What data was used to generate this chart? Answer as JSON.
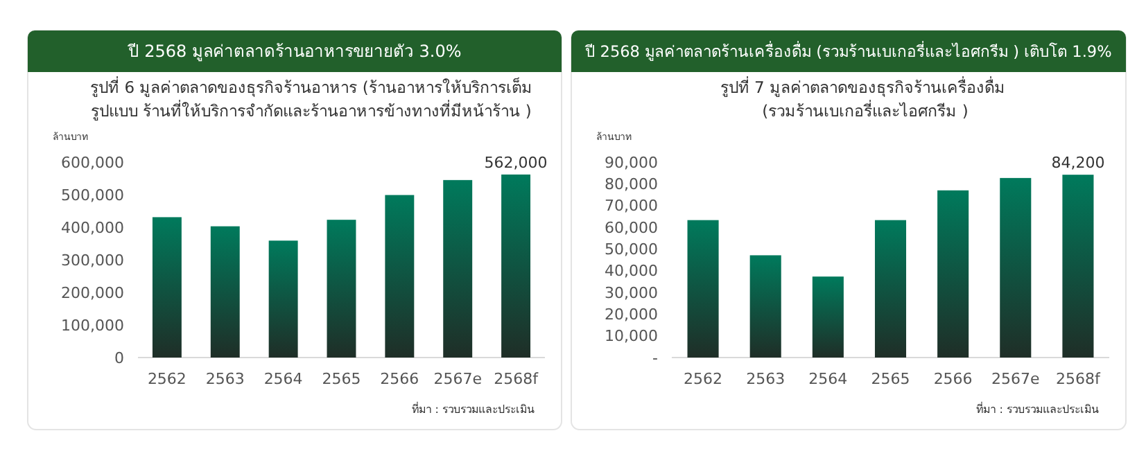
{
  "chart_data": [
    {
      "type": "bar",
      "title": "ปี 2568 มูลค่าตลาดร้านอาหารขยายตัว 3.0%",
      "subtitle": "รูปที่ 6  มูลค่าตลาดของธุรกิจร้านอาหาร (ร้านอาหารให้บริการเต็ม รูปแบบ ร้านที่ให้บริการจำกัดและร้านอาหารข้างทางที่มีหน้าร้าน )",
      "ylabel": "ล้านบาท",
      "annotations": [
        "ที่มา : รวบรวมและประเมิน"
      ],
      "categories": [
        "2562",
        "2563",
        "2564",
        "2565",
        "2566",
        "2567e",
        "2568f"
      ],
      "values": [
        431000,
        403000,
        359000,
        423000,
        499000,
        545000,
        562000
      ],
      "value_labels": [
        null,
        null,
        null,
        null,
        null,
        null,
        "562,000"
      ],
      "color": "#007a5c",
      "ylim": [
        0,
        600000
      ],
      "yticks": [
        {
          "value": 0,
          "label": "0"
        },
        {
          "value": 100000,
          "label": "100,000"
        },
        {
          "value": 200000,
          "label": "200,000"
        },
        {
          "value": 300000,
          "label": "300,000"
        },
        {
          "value": 400000,
          "label": "400,000"
        },
        {
          "value": 500000,
          "label": "500,000"
        },
        {
          "value": 600000,
          "label": "600,000"
        }
      ],
      "grid": false
    },
    {
      "type": "bar",
      "title": "ปี 2568 มูลค่าตลาดร้านเครื่องดื่ม (รวมร้านเบเกอรี่และไอศกรีม ) เติบโต 1.9%",
      "subtitle": "รูปที่ 7 มูลค่าตลาดของธุรกิจร้านเครื่องดื่ม  (รวมร้านเบเกอรี่และไอศกรีม )",
      "ylabel": "ล้านบาท",
      "annotations": [
        "ที่มา : รวบรวมและประเมิน"
      ],
      "categories": [
        "2562",
        "2563",
        "2564",
        "2565",
        "2566",
        "2567e",
        "2568f"
      ],
      "values": [
        63300,
        47100,
        37300,
        63300,
        77000,
        82700,
        84200
      ],
      "value_labels": [
        null,
        null,
        null,
        null,
        null,
        null,
        "84,200"
      ],
      "color": "#007a5c",
      "ylim": [
        0,
        90000
      ],
      "yticks": [
        {
          "value": 0,
          "label": "-"
        },
        {
          "value": 10000,
          "label": "10,000"
        },
        {
          "value": 20000,
          "label": "20,000"
        },
        {
          "value": 30000,
          "label": "30,000"
        },
        {
          "value": 40000,
          "label": "40,000"
        },
        {
          "value": 50000,
          "label": "50,000"
        },
        {
          "value": 60000,
          "label": "60,000"
        },
        {
          "value": 70000,
          "label": "70,000"
        },
        {
          "value": 80000,
          "label": "80,000"
        },
        {
          "value": 90000,
          "label": "90,000"
        }
      ],
      "grid": false
    }
  ]
}
